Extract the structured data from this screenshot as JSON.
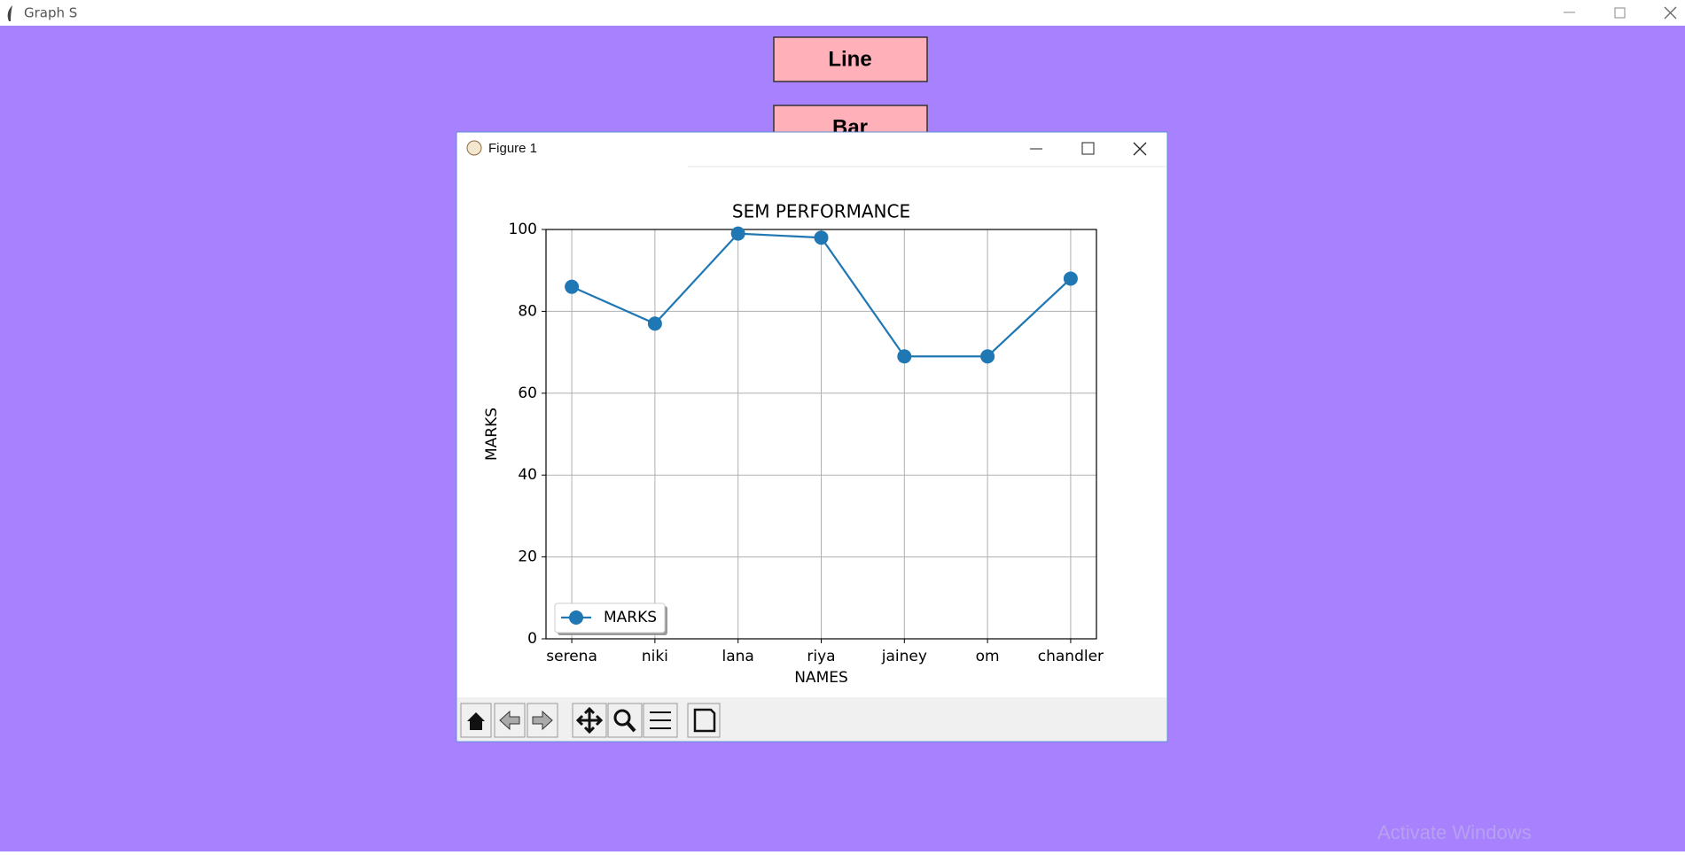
{
  "app_title": "Graph S",
  "buttons": [
    "Line",
    "Bar"
  ],
  "figure_window_title": "Figure 1",
  "watermark": "Activate Windows",
  "chart_data": {
    "type": "line",
    "title": "SEM PERFORMANCE",
    "xlabel": "NAMES",
    "ylabel": "MARKS",
    "categories": [
      "serena",
      "niki",
      "lana",
      "riya",
      "jainey",
      "om",
      "chandler"
    ],
    "series": [
      {
        "name": "MARKS",
        "color": "#1f77b4",
        "values": [
          86,
          77,
          99,
          98,
          69,
          69,
          88
        ]
      }
    ],
    "ylim": [
      0,
      100
    ],
    "yticks": [
      0,
      20,
      40,
      60,
      80,
      100
    ],
    "grid": true,
    "legend": "lower left"
  }
}
